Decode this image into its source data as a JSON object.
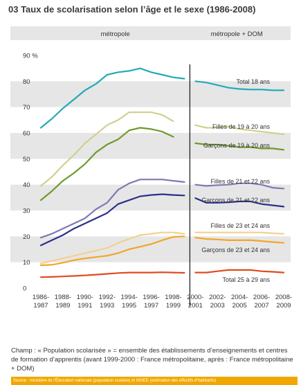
{
  "title": "03 Taux de scolarisation selon l’âge et le sexe (1986-2008)",
  "note": "Champ : « Population scolarisée » = ensemble des établissements d’enseignements et centres de formation d’apprentis (avant 1999-2000 : France métropolitaine, après : France métropolitaine + DOM)",
  "source": "Source : ministère de l’Éducation nationale (population scolaire) et INSEE (estimation des effectifs d’habitants)",
  "colors": {
    "band": "#e6e6e6",
    "divider": "#222222",
    "source_bg": "#f0a800"
  },
  "chart_data": {
    "type": "line",
    "panels": [
      "métropole",
      "métropole + DOM"
    ],
    "y_unit_label": "90 %",
    "ylim": [
      0,
      90
    ],
    "yticks": [
      0,
      10,
      20,
      30,
      40,
      50,
      60,
      70,
      80,
      90
    ],
    "ytick_labels": [
      "0",
      "10",
      "20",
      "30",
      "40",
      "50",
      "60",
      "70",
      "80",
      "90 %"
    ],
    "x": [
      "1986-1987",
      "1987-1988",
      "1988-1989",
      "1989-1990",
      "1990-1991",
      "1991-1992",
      "1992-1993",
      "1993-1994",
      "1994-1995",
      "1995-1996",
      "1996-1997",
      "1997-1998",
      "1998-1999",
      "1999-2000",
      "2000-2001",
      "2001-2002",
      "2002-2003",
      "2003-2004",
      "2004-2005",
      "2005-2006",
      "2006-2007",
      "2007-2008",
      "2008-2009"
    ],
    "xtick_labels": [
      [
        "1986-",
        "1987"
      ],
      [
        "1988-",
        "1989"
      ],
      [
        "1990-",
        "1991"
      ],
      [
        "1992-",
        "1993"
      ],
      [
        "1994-",
        "1995"
      ],
      [
        "1996-",
        "1997"
      ],
      [
        "1998-",
        "1999"
      ],
      [
        "2000-",
        "2001"
      ],
      [
        "2002-",
        "2003"
      ],
      [
        "2004-",
        "2005"
      ],
      [
        "2006-",
        "2007"
      ],
      [
        "2008-",
        "2009"
      ]
    ],
    "series": [
      {
        "name": "Total 18 ans",
        "color": "#22aab8",
        "values": [
          62,
          65.5,
          69.5,
          73,
          76.5,
          79,
          82.5,
          83.5,
          84,
          85,
          83.5,
          82.5,
          81.5,
          81,
          80,
          79.5,
          78.5,
          77.5,
          77,
          76.8,
          76.8,
          76.5,
          76.5
        ]
      },
      {
        "name": "Filles de 19 à 20 ans",
        "color": "#d0d090",
        "values": [
          39.5,
          43,
          47.5,
          51.5,
          56,
          59.5,
          63,
          65,
          68,
          68,
          68,
          67,
          64.5,
          null,
          63,
          62,
          62,
          62.5,
          61.5,
          61,
          60.5,
          60,
          59.5
        ]
      },
      {
        "name": "Garçons de 19 à 20 ans",
        "color": "#6e9a2a",
        "values": [
          34,
          37.5,
          41.5,
          44.5,
          48,
          52.5,
          55.5,
          57.5,
          61,
          62,
          61.5,
          60.5,
          58.5,
          null,
          56,
          55.5,
          55.5,
          55,
          54.5,
          54.5,
          54,
          54,
          53.5
        ]
      },
      {
        "name": "Filles de 21 et 22 ans",
        "color": "#8078b0",
        "values": [
          19.5,
          21,
          23,
          25,
          27,
          30.5,
          33,
          38,
          40.5,
          42,
          42,
          42,
          41.5,
          41,
          40,
          39.5,
          39.8,
          40,
          40.5,
          40.5,
          40,
          38.8,
          38.5
        ]
      },
      {
        "name": "Garçons de 21 et 22 ans",
        "color": "#2b2f8a",
        "values": [
          16.5,
          18.5,
          20.5,
          23,
          25,
          27,
          29,
          32.5,
          34,
          35.5,
          36,
          36.3,
          36,
          35.8,
          34.8,
          33,
          33,
          33.2,
          33.5,
          33.5,
          32.5,
          32,
          31.5
        ]
      },
      {
        "name": "Filles de 23 et 24 ans",
        "color": "#f2d090",
        "values": [
          9.5,
          10.5,
          11.5,
          12.5,
          13.5,
          14.5,
          15.5,
          17.5,
          19,
          20.5,
          21,
          21.5,
          21.5,
          21,
          21.5,
          21.5,
          21.5,
          21.5,
          21.5,
          21.5,
          21.5,
          21.2,
          21
        ]
      },
      {
        "name": "Garçons de 23 et 24 ans",
        "color": "#f2a626",
        "values": [
          8.8,
          9,
          9.8,
          10.8,
          11.5,
          12,
          12.5,
          13.5,
          15,
          16,
          17,
          18.5,
          19.8,
          20,
          19.5,
          19,
          18.8,
          18.5,
          18.5,
          18.5,
          18.2,
          17.8,
          17.5
        ]
      },
      {
        "name": "Total  25 à 29 ans",
        "color": "#e04a1e",
        "values": [
          4.2,
          4.3,
          4.5,
          4.7,
          4.9,
          5.2,
          5.5,
          5.8,
          6,
          6,
          6,
          6.1,
          6,
          5.9,
          6,
          6,
          6.5,
          7,
          7,
          7,
          6.5,
          6.3,
          6
        ]
      }
    ]
  }
}
